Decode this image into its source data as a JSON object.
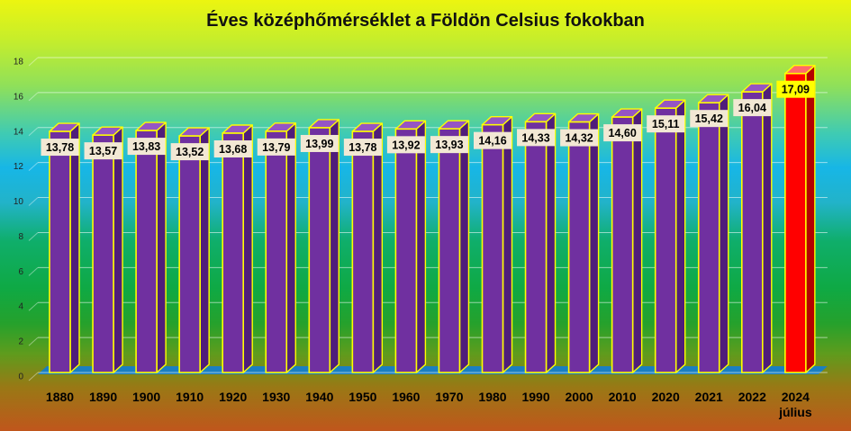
{
  "chart_data": {
    "type": "bar",
    "title": "Éves középhőmérséklet a Földön Celsius fokokban",
    "categories": [
      [
        "1880"
      ],
      [
        "1890"
      ],
      [
        "1900"
      ],
      [
        "1910"
      ],
      [
        "1920"
      ],
      [
        "1930"
      ],
      [
        "1940"
      ],
      [
        "1950"
      ],
      [
        "1960"
      ],
      [
        "1970"
      ],
      [
        "1980"
      ],
      [
        "1990"
      ],
      [
        "2000"
      ],
      [
        "2010"
      ],
      [
        "2020"
      ],
      [
        "2021"
      ],
      [
        "2022"
      ],
      [
        "2024",
        "július"
      ]
    ],
    "values": [
      13.78,
      13.57,
      13.83,
      13.52,
      13.68,
      13.79,
      13.99,
      13.78,
      13.92,
      13.93,
      14.16,
      14.33,
      14.32,
      14.6,
      15.11,
      15.42,
      16.04,
      17.09
    ],
    "data_labels": [
      "13,78",
      "13,57",
      "13,83",
      "13,52",
      "13,68",
      "13,79",
      "13,99",
      "13,78",
      "13,92",
      "13,93",
      "14,16",
      "14,33",
      "14,32",
      "14,60",
      "15,11",
      "15,42",
      "16,04",
      "17,09"
    ],
    "yticks": [
      0,
      2,
      4,
      6,
      8,
      10,
      12,
      14,
      16,
      18
    ],
    "ylim": [
      0,
      18
    ],
    "xlabel": "",
    "ylabel": "",
    "grid": true,
    "legend": "none",
    "colors": {
      "bar": "#7030a0",
      "bar_highlight": "#ff0000",
      "bar_outline": "#ffff00",
      "floor": "#1a7fc1",
      "label_box": "#f2e8d4",
      "label_box_highlight": "#ffff00"
    }
  }
}
